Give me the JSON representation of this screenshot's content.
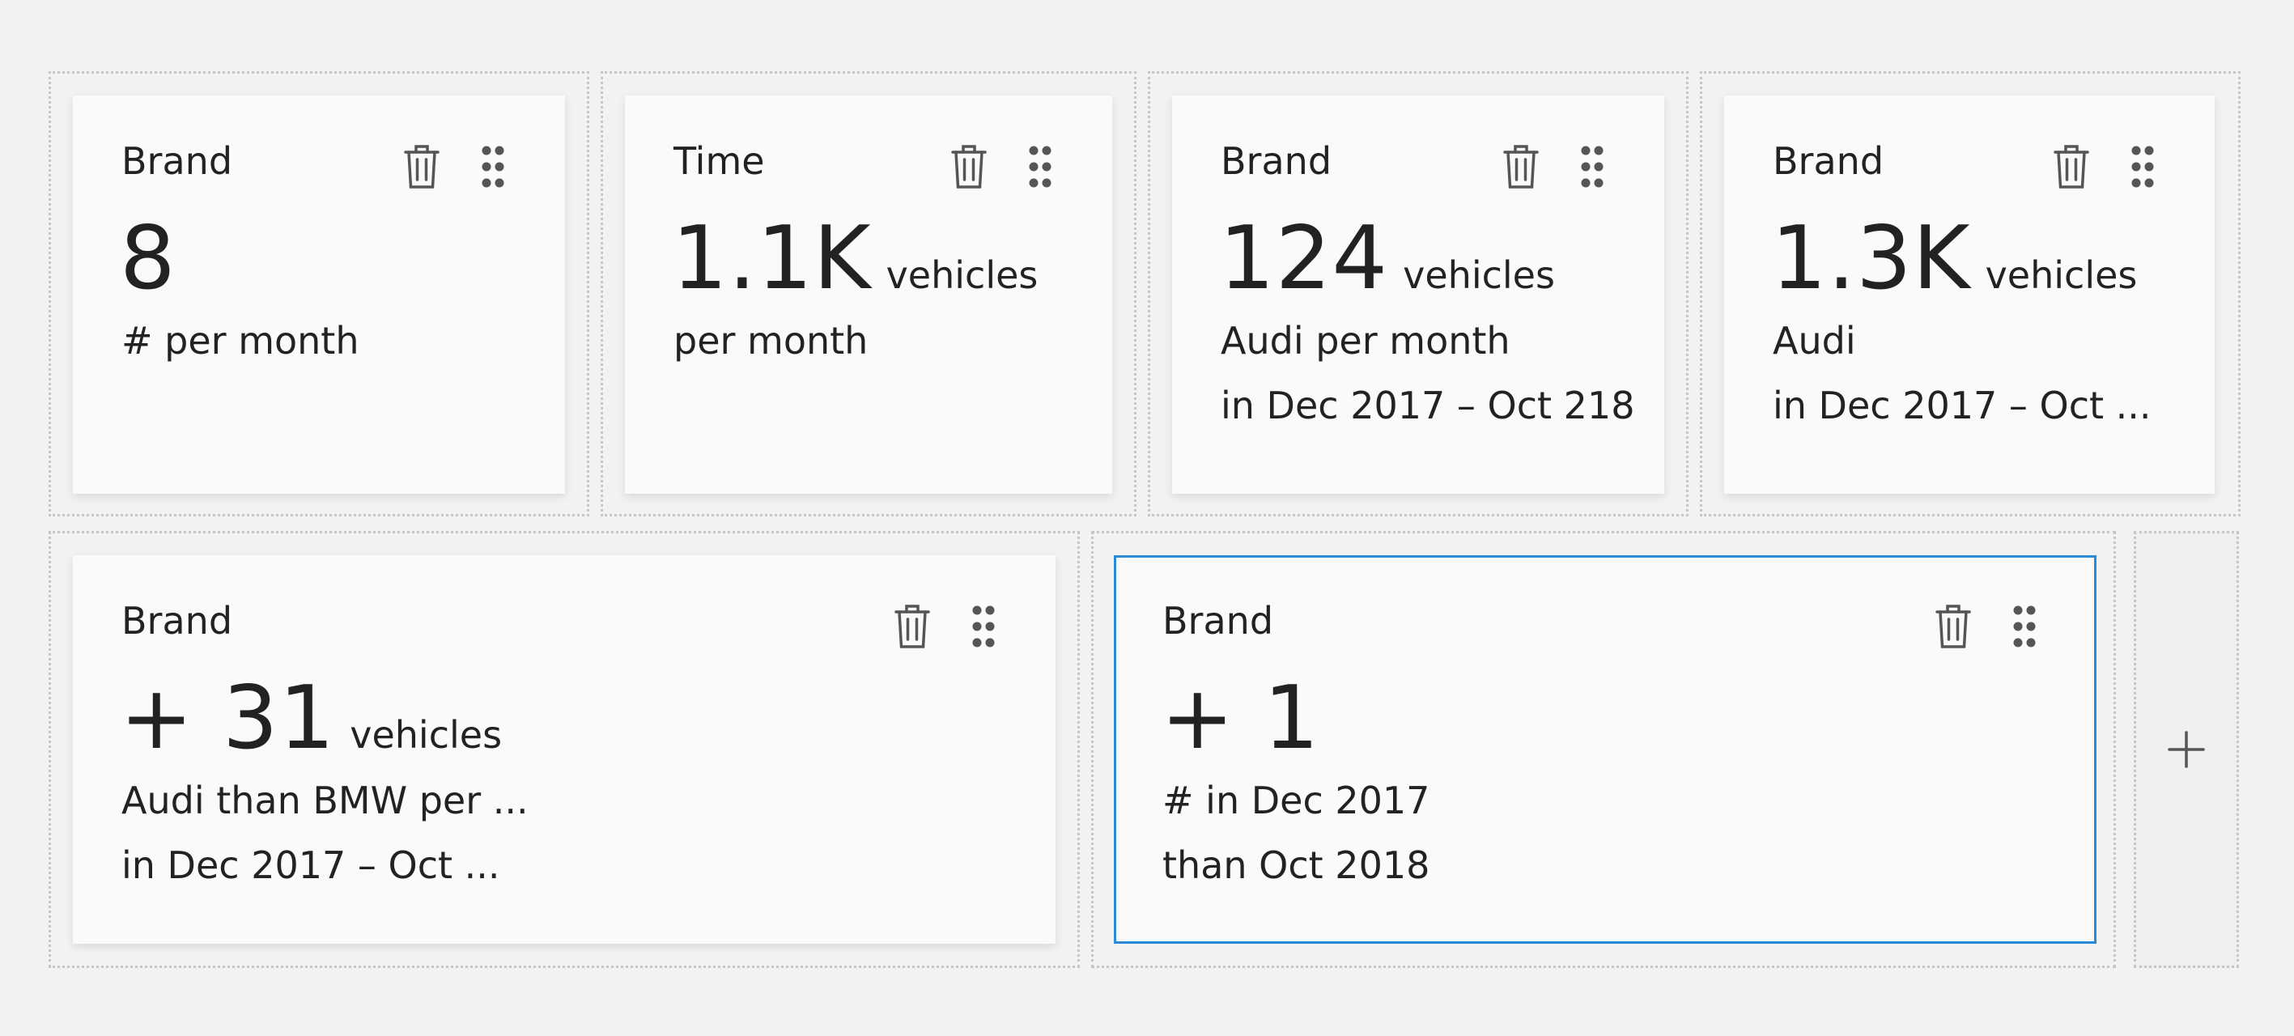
{
  "cards": [
    {
      "title": "Brand",
      "value": "8",
      "unit": "",
      "line1": "# per month",
      "line2": ""
    },
    {
      "title": "Time",
      "value": "1.1K",
      "unit": "vehicles",
      "line1": "per month",
      "line2": ""
    },
    {
      "title": "Brand",
      "value": "124",
      "unit": "vehicles",
      "line1": "Audi per month",
      "line2": "in Dec 2017 – Oct 218"
    },
    {
      "title": "Brand",
      "value": "1.3K",
      "unit": "vehicles",
      "line1": "Audi",
      "line2": "in Dec 2017 – Oct ..."
    },
    {
      "title": "Brand",
      "value": "+ 31",
      "unit": "vehicles",
      "line1": "Audi than BMW per ...",
      "line2": "in Dec 2017 – Oct ..."
    },
    {
      "title": "Brand",
      "value": "+ 1",
      "unit": "",
      "line1": "# in Dec 2017",
      "line2": "than Oct 2018",
      "selected": true
    }
  ],
  "icons": {
    "delete": "trash-icon",
    "drag": "drag-handle-icon",
    "add": "plus-icon"
  },
  "colors": {
    "background": "#f2f2f2",
    "card": "#fafafa",
    "selected_border": "#2b8ad8",
    "icon": "#555555"
  }
}
